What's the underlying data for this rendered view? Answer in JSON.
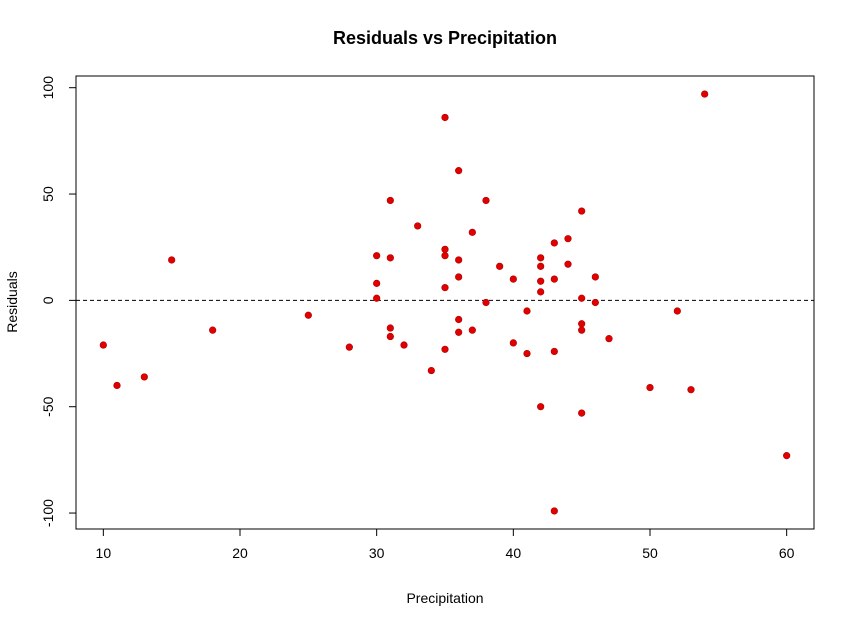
{
  "chart_data": {
    "type": "scatter",
    "title": "Residuals vs Precipitation",
    "xlabel": "Precipitation",
    "ylabel": "Residuals",
    "xlim": [
      8.0,
      62.0
    ],
    "ylim": [
      -107.5,
      105.5
    ],
    "x_ticks": [
      10,
      20,
      30,
      40,
      50,
      60
    ],
    "y_ticks": [
      -100,
      -50,
      0,
      50,
      100
    ],
    "grid": false,
    "reference_line": {
      "y": 0,
      "style": "dashed",
      "color": "#000000"
    },
    "point_color": "#e00000",
    "points": [
      {
        "x": 10,
        "y": -21
      },
      {
        "x": 11,
        "y": -40
      },
      {
        "x": 13,
        "y": -36
      },
      {
        "x": 15,
        "y": 19
      },
      {
        "x": 18,
        "y": -14
      },
      {
        "x": 25,
        "y": -7
      },
      {
        "x": 28,
        "y": -22
      },
      {
        "x": 30,
        "y": 21
      },
      {
        "x": 30,
        "y": 8
      },
      {
        "x": 30,
        "y": 1
      },
      {
        "x": 31,
        "y": 47
      },
      {
        "x": 31,
        "y": 20
      },
      {
        "x": 31,
        "y": -13
      },
      {
        "x": 31,
        "y": -17
      },
      {
        "x": 32,
        "y": -21
      },
      {
        "x": 33,
        "y": 35
      },
      {
        "x": 34,
        "y": -33
      },
      {
        "x": 35,
        "y": 86
      },
      {
        "x": 35,
        "y": 24
      },
      {
        "x": 35,
        "y": 21
      },
      {
        "x": 35,
        "y": 6
      },
      {
        "x": 35,
        "y": -23
      },
      {
        "x": 36,
        "y": 61
      },
      {
        "x": 36,
        "y": 19
      },
      {
        "x": 36,
        "y": 11
      },
      {
        "x": 36,
        "y": -9
      },
      {
        "x": 36,
        "y": -15
      },
      {
        "x": 37,
        "y": 32
      },
      {
        "x": 37,
        "y": -14
      },
      {
        "x": 38,
        "y": 47
      },
      {
        "x": 38,
        "y": -1
      },
      {
        "x": 39,
        "y": 16
      },
      {
        "x": 40,
        "y": 10
      },
      {
        "x": 40,
        "y": -20
      },
      {
        "x": 41,
        "y": -5
      },
      {
        "x": 41,
        "y": -25
      },
      {
        "x": 42,
        "y": 20
      },
      {
        "x": 42,
        "y": 16
      },
      {
        "x": 42,
        "y": 9
      },
      {
        "x": 42,
        "y": 4
      },
      {
        "x": 42,
        "y": -50
      },
      {
        "x": 43,
        "y": 27
      },
      {
        "x": 43,
        "y": 10
      },
      {
        "x": 43,
        "y": -24
      },
      {
        "x": 43,
        "y": -99
      },
      {
        "x": 44,
        "y": 29
      },
      {
        "x": 44,
        "y": 17
      },
      {
        "x": 45,
        "y": 42
      },
      {
        "x": 45,
        "y": 1
      },
      {
        "x": 45,
        "y": -11
      },
      {
        "x": 45,
        "y": -14
      },
      {
        "x": 45,
        "y": -53
      },
      {
        "x": 46,
        "y": 11
      },
      {
        "x": 46,
        "y": -1
      },
      {
        "x": 47,
        "y": -18
      },
      {
        "x": 50,
        "y": -41
      },
      {
        "x": 52,
        "y": -5
      },
      {
        "x": 53,
        "y": -42
      },
      {
        "x": 54,
        "y": 97
      },
      {
        "x": 60,
        "y": -73
      }
    ]
  }
}
